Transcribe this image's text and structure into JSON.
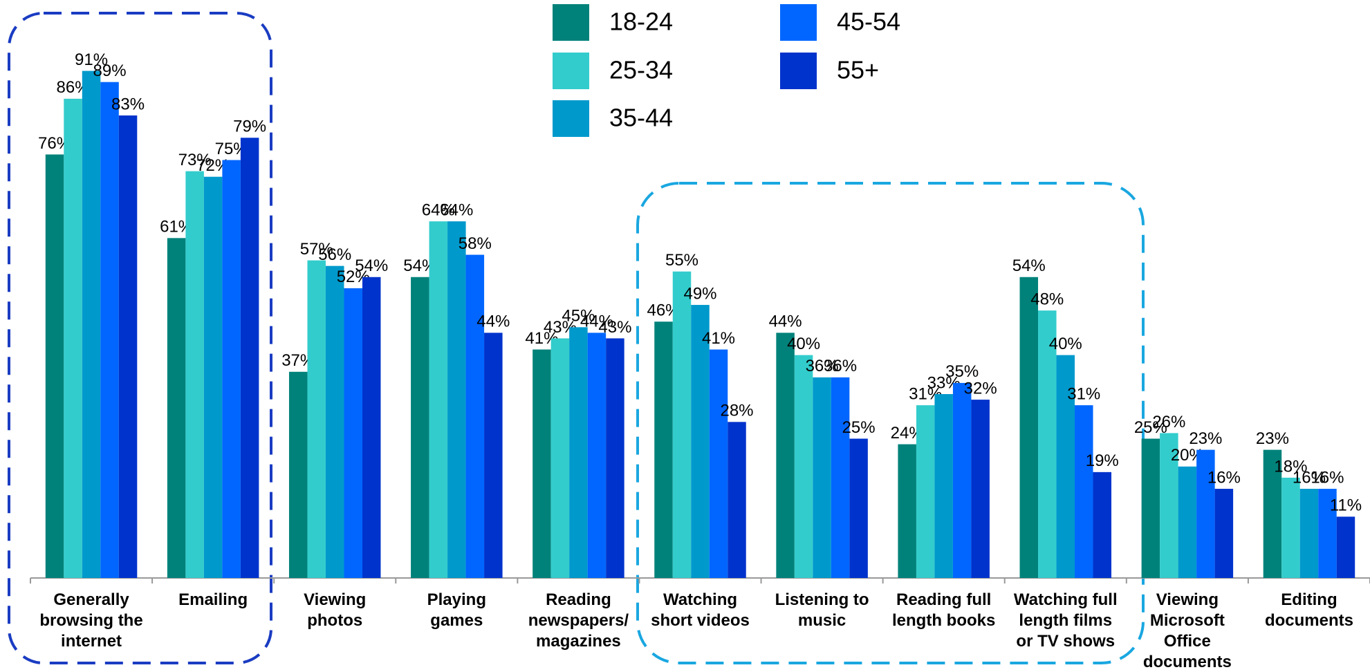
{
  "chart_data": {
    "type": "bar",
    "categories": [
      "Generally\nbrowsing the\ninternet",
      "Emailing",
      "Viewing\nphotos",
      "Playing\ngames",
      "Reading\nnewspapers/\nmagazines",
      "Watching\nshort videos",
      "Listening to\nmusic",
      "Reading full\nlength books",
      "Watching full\nlength films\nor TV shows",
      "Viewing\nMicrosoft\nOffice\ndocuments",
      "Editing\ndocuments"
    ],
    "series": [
      {
        "name": "18-24",
        "color": "#00827a",
        "values": [
          76,
          61,
          37,
          54,
          41,
          46,
          44,
          24,
          54,
          25,
          23
        ],
        "value_labels": [
          "76%",
          "61%",
          "37%",
          "54%",
          "41%",
          "46%",
          "44%",
          "24%",
          "54%",
          "25%",
          "23%"
        ]
      },
      {
        "name": "25-34",
        "color": "#33cccc",
        "values": [
          86,
          73,
          57,
          64,
          43,
          55,
          40,
          31,
          48,
          26,
          18
        ],
        "value_labels": [
          "86%",
          "73%",
          "57%",
          "64%",
          "43%",
          "55%",
          "40%",
          "31%",
          "48%",
          "26%",
          "18%"
        ]
      },
      {
        "name": "35-44",
        "color": "#0099cc",
        "values": [
          91,
          72,
          56,
          64,
          45,
          49,
          36,
          33,
          40,
          20,
          16
        ],
        "value_labels": [
          "91%",
          "72%",
          "56%",
          "64%",
          "45%",
          "49%",
          "36%",
          "33%",
          "40%",
          "20%",
          "16%"
        ]
      },
      {
        "name": "45-54",
        "color": "#0066ff",
        "values": [
          89,
          75,
          52,
          58,
          44,
          41,
          36,
          35,
          31,
          23,
          16
        ],
        "value_labels": [
          "89%",
          "75%",
          "52%",
          "58%",
          "44%",
          "41%",
          "36%",
          "35%",
          "31%",
          "23%",
          "16%"
        ]
      },
      {
        "name": "55+",
        "color": "#0033cc",
        "values": [
          83,
          79,
          54,
          44,
          43,
          28,
          25,
          32,
          19,
          16,
          11
        ],
        "value_labels": [
          "83%",
          "79%",
          "54%",
          "44%",
          "43%",
          "28%",
          "25%",
          "32%",
          "19%",
          "16%",
          "11%"
        ]
      }
    ],
    "ylim": [
      0,
      100
    ]
  }
}
